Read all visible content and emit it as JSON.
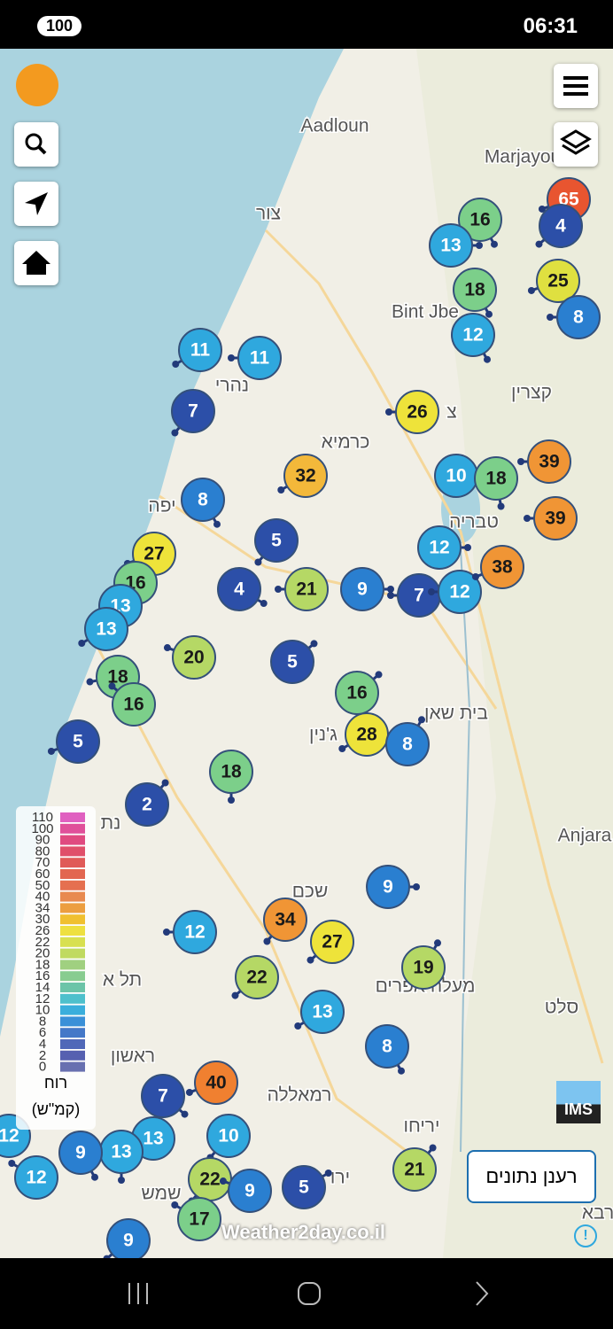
{
  "status_bar": {
    "battery": "100",
    "time": "06:31"
  },
  "map": {
    "labels": [
      "Aadloun",
      "צור",
      "Marjayou",
      "Bint Jbe",
      "נהרי",
      "קצרין",
      "צ",
      "כרמיא",
      "יפה",
      "טבריה",
      "בית שאן",
      "ג'נין",
      "Anjara",
      "נת",
      "שכם",
      "תל א",
      "מעלה אפרים",
      "סלט",
      "ראשון",
      "רמאללה",
      "יריחו",
      "שמש",
      "ירו",
      "רבא"
    ],
    "markers": [
      {
        "value": 65,
        "color": "#e85530"
      },
      {
        "value": 4,
        "color": "#2c4fa8"
      },
      {
        "value": 16,
        "color": "#7ccf8a"
      },
      {
        "value": 13,
        "color": "#2fa8de"
      },
      {
        "value": 18,
        "color": "#7ccf8a"
      },
      {
        "value": 25,
        "color": "#dfe040"
      },
      {
        "value": 8,
        "color": "#2a7fd0"
      },
      {
        "value": 12,
        "color": "#2fa8de"
      },
      {
        "value": 11,
        "color": "#2fa8de"
      },
      {
        "value": 11,
        "color": "#2fa8de"
      },
      {
        "value": 7,
        "color": "#2c4fa8"
      },
      {
        "value": 26,
        "color": "#eee33a"
      },
      {
        "value": 32,
        "color": "#f3b83a"
      },
      {
        "value": 10,
        "color": "#2fa8de"
      },
      {
        "value": 18,
        "color": "#7ccf8a"
      },
      {
        "value": 39,
        "color": "#f09535"
      },
      {
        "value": 39,
        "color": "#f09535"
      },
      {
        "value": 8,
        "color": "#2a7fd0"
      },
      {
        "value": 5,
        "color": "#2c4fa8"
      },
      {
        "value": 27,
        "color": "#eee33a"
      },
      {
        "value": 16,
        "color": "#7ccf8a"
      },
      {
        "value": 13,
        "color": "#2fa8de"
      },
      {
        "value": 13,
        "color": "#2fa8de"
      },
      {
        "value": 4,
        "color": "#2c4fa8"
      },
      {
        "value": 21,
        "color": "#b5d865"
      },
      {
        "value": 9,
        "color": "#2a7fd0"
      },
      {
        "value": 7,
        "color": "#2c4fa8"
      },
      {
        "value": 12,
        "color": "#2fa8de"
      },
      {
        "value": 12,
        "color": "#2fa8de"
      },
      {
        "value": 38,
        "color": "#f09535"
      },
      {
        "value": 20,
        "color": "#b5d865"
      },
      {
        "value": 5,
        "color": "#2c4fa8"
      },
      {
        "value": 18,
        "color": "#7ccf8a"
      },
      {
        "value": 16,
        "color": "#7ccf8a"
      },
      {
        "value": 16,
        "color": "#7ccf8a"
      },
      {
        "value": 28,
        "color": "#eee33a"
      },
      {
        "value": 8,
        "color": "#2a7fd0"
      },
      {
        "value": 5,
        "color": "#2c4fa8"
      },
      {
        "value": 18,
        "color": "#7ccf8a"
      },
      {
        "value": 2,
        "color": "#2c4fa8"
      },
      {
        "value": 9,
        "color": "#2a7fd0"
      },
      {
        "value": 34,
        "color": "#f09535"
      },
      {
        "value": 27,
        "color": "#eee33a"
      },
      {
        "value": 12,
        "color": "#2fa8de"
      },
      {
        "value": 19,
        "color": "#b5d865"
      },
      {
        "value": 22,
        "color": "#b5d865"
      },
      {
        "value": 13,
        "color": "#2fa8de"
      },
      {
        "value": 8,
        "color": "#2a7fd0"
      },
      {
        "value": 40,
        "color": "#f08030"
      },
      {
        "value": 7,
        "color": "#2c4fa8"
      },
      {
        "value": 10,
        "color": "#2fa8de"
      },
      {
        "value": 13,
        "color": "#2fa8de"
      },
      {
        "value": 13,
        "color": "#2fa8de"
      },
      {
        "value": 9,
        "color": "#2a7fd0"
      },
      {
        "value": 12,
        "color": "#2fa8de"
      },
      {
        "value": 22,
        "color": "#b5d865"
      },
      {
        "value": 9,
        "color": "#2a7fd0"
      },
      {
        "value": 5,
        "color": "#2c4fa8"
      },
      {
        "value": 21,
        "color": "#b5d865"
      },
      {
        "value": 17,
        "color": "#7ccf8a"
      },
      {
        "value": 9,
        "color": "#2a7fd0"
      },
      {
        "value": 12,
        "color": "#2fa8de"
      }
    ]
  },
  "legend": {
    "ticks": [
      110,
      100,
      90,
      80,
      70,
      60,
      50,
      40,
      34,
      30,
      26,
      22,
      20,
      18,
      16,
      14,
      12,
      10,
      8,
      6,
      4,
      2,
      0
    ],
    "colors": [
      "#e060c0",
      "#e0509a",
      "#e04a80",
      "#e04f6a",
      "#e05a58",
      "#e26650",
      "#e57050",
      "#e88a50",
      "#ec9e40",
      "#f0c030",
      "#eee040",
      "#d8e050",
      "#c0da60",
      "#a0d080",
      "#88cc90",
      "#6cc4a8",
      "#4ec0cc",
      "#3aaedc",
      "#3a90d8",
      "#4478c8",
      "#5068b8",
      "#5660b0",
      "#6870b0"
    ],
    "title": "רוח",
    "unit": "(קמ\"ש)"
  },
  "refresh_button": "רענן נתונים",
  "watermark": "Weather2day.co.il",
  "ims_logo": "IMS"
}
